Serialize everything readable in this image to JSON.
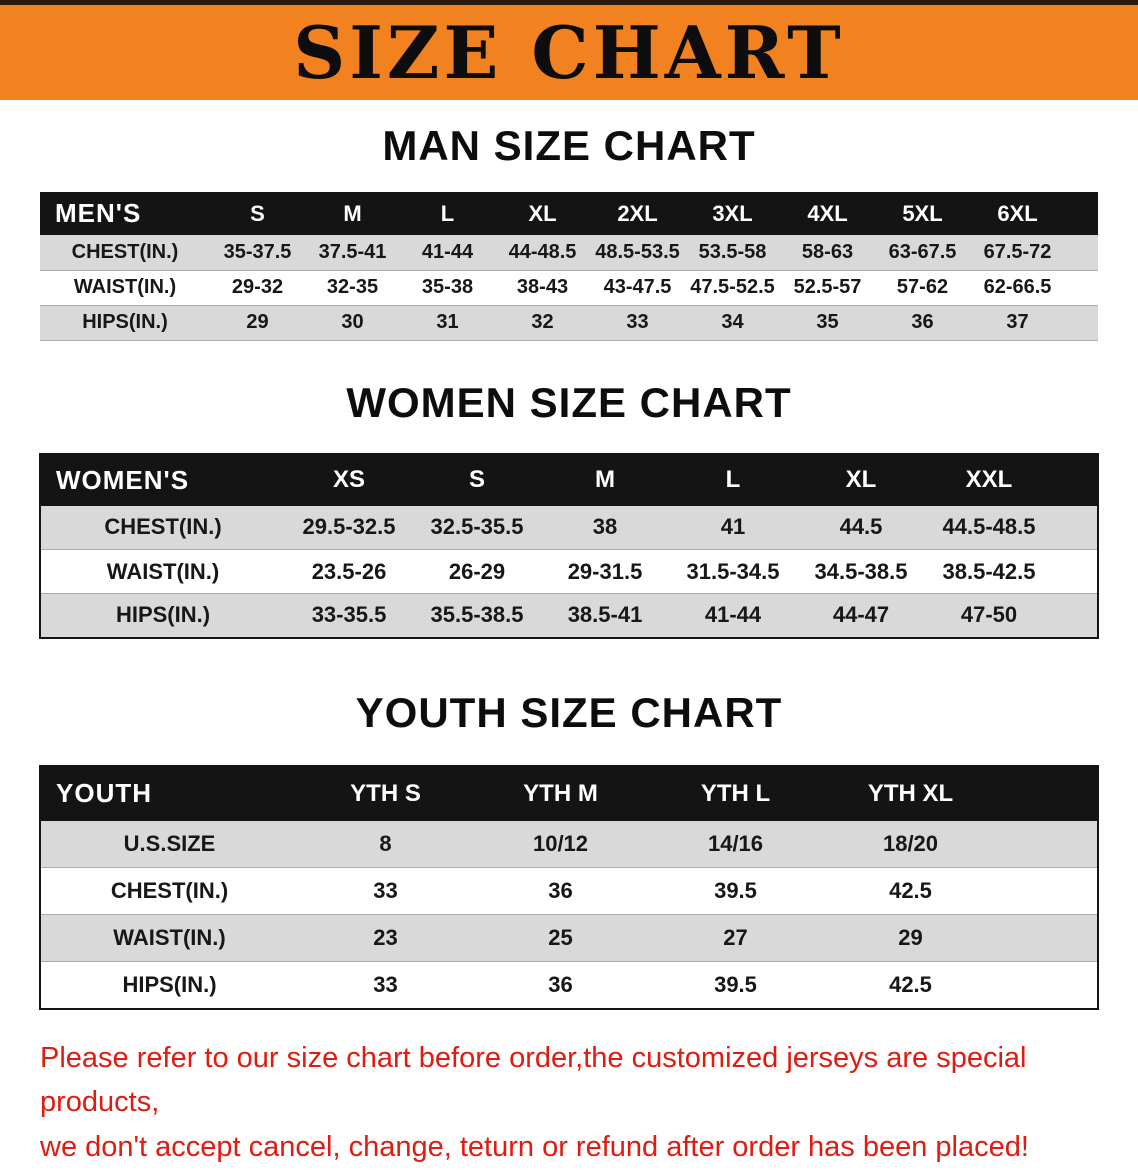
{
  "banner": {
    "title": "SIZE CHART",
    "bg_color": "#f28220"
  },
  "sections": [
    {
      "heading": "MAN SIZE CHART",
      "table": {
        "name": "men",
        "header": [
          "MEN'S",
          "S",
          "M",
          "L",
          "XL",
          "2XL",
          "3XL",
          "4XL",
          "5XL",
          "6XL"
        ],
        "rows": [
          {
            "label": "CHEST(IN.)",
            "values": [
              "35-37.5",
              "37.5-41",
              "41-44",
              "44-48.5",
              "48.5-53.5",
              "53.5-58",
              "58-63",
              "63-67.5",
              "67.5-72"
            ]
          },
          {
            "label": "WAIST(IN.)",
            "values": [
              "29-32",
              "32-35",
              "35-38",
              "38-43",
              "43-47.5",
              "47.5-52.5",
              "52.5-57",
              "57-62",
              "62-66.5"
            ]
          },
          {
            "label": "HIPS(IN.)",
            "values": [
              "29",
              "30",
              "31",
              "32",
              "33",
              "34",
              "35",
              "36",
              "37"
            ]
          }
        ]
      }
    },
    {
      "heading": "WOMEN SIZE CHART",
      "table": {
        "name": "women",
        "header": [
          "WOMEN'S",
          "XS",
          "S",
          "M",
          "L",
          "XL",
          "XXL"
        ],
        "rows": [
          {
            "label": "CHEST(IN.)",
            "values": [
              "29.5-32.5",
              "32.5-35.5",
              "38",
              "41",
              "44.5",
              "44.5-48.5"
            ]
          },
          {
            "label": "WAIST(IN.)",
            "values": [
              "23.5-26",
              "26-29",
              "29-31.5",
              "31.5-34.5",
              "34.5-38.5",
              "38.5-42.5"
            ]
          },
          {
            "label": "HIPS(IN.)",
            "values": [
              "33-35.5",
              "35.5-38.5",
              "38.5-41",
              "41-44",
              "44-47",
              "47-50"
            ]
          }
        ]
      }
    },
    {
      "heading": "YOUTH SIZE CHART",
      "table": {
        "name": "youth",
        "header": [
          "YOUTH",
          "YTH S",
          "YTH M",
          "YTH L",
          "YTH XL"
        ],
        "rows": [
          {
            "label": "U.S.SIZE",
            "values": [
              "8",
              "10/12",
              "14/16",
              "18/20"
            ]
          },
          {
            "label": "CHEST(IN.)",
            "values": [
              "33",
              "36",
              "39.5",
              "42.5"
            ]
          },
          {
            "label": "WAIST(IN.)",
            "values": [
              "23",
              "25",
              "27",
              "29"
            ]
          },
          {
            "label": "HIPS(IN.)",
            "values": [
              "33",
              "36",
              "39.5",
              "42.5"
            ]
          }
        ]
      }
    }
  ],
  "disclaimer": {
    "color": "#e01b10",
    "line1": "Please refer to our size chart before order,the customized jerseys are special products,",
    "line2": "we don't accept cancel, change, teturn or refund after order has been placed!"
  }
}
